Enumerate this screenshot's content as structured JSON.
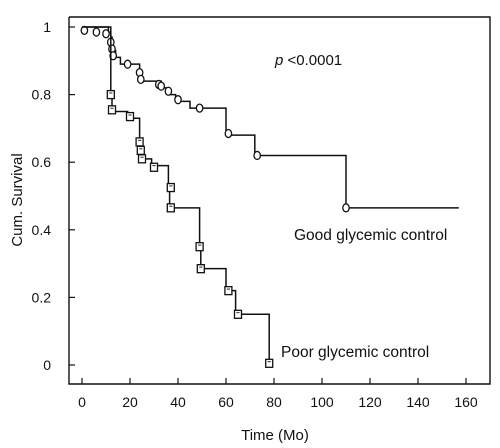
{
  "chart_data": {
    "type": "line",
    "subtype": "kaplan-meier-step",
    "xlabel": "Time (Mo)",
    "ylabel": "Cum. Survival",
    "xlim": [
      0,
      160
    ],
    "ylim": [
      0,
      1
    ],
    "xticks": [
      0,
      20,
      40,
      60,
      80,
      100,
      120,
      140,
      160
    ],
    "yticks": [
      0,
      0.2,
      0.4,
      0.6,
      0.8,
      1
    ],
    "grid": false,
    "legend": "none",
    "annotation": {
      "prefix": "p",
      "text": " <0.0001"
    },
    "series": [
      {
        "name": "Good glycemic control",
        "marker": "circle",
        "end_x": 157,
        "steps": [
          [
            0,
            1.0
          ],
          [
            11,
            0.985
          ],
          [
            12,
            0.97
          ],
          [
            12.5,
            0.95
          ],
          [
            13,
            0.93
          ],
          [
            14,
            0.91
          ],
          [
            16,
            0.89
          ],
          [
            24,
            0.86
          ],
          [
            24.5,
            0.84
          ],
          [
            33,
            0.82
          ],
          [
            36,
            0.8
          ],
          [
            39,
            0.78
          ],
          [
            45,
            0.76
          ],
          [
            60,
            0.68
          ],
          [
            72,
            0.62
          ],
          [
            110,
            0.465
          ]
        ],
        "censored": [
          [
            1,
            0.99
          ],
          [
            6,
            0.985
          ],
          [
            10,
            0.98
          ],
          [
            12,
            0.955
          ],
          [
            12.5,
            0.935
          ],
          [
            13,
            0.915
          ],
          [
            19,
            0.89
          ],
          [
            24,
            0.865
          ],
          [
            24.5,
            0.845
          ],
          [
            32,
            0.83
          ],
          [
            33,
            0.825
          ],
          [
            36,
            0.81
          ],
          [
            40,
            0.785
          ],
          [
            49,
            0.76
          ],
          [
            61,
            0.685
          ],
          [
            73,
            0.62
          ],
          [
            110,
            0.465
          ]
        ]
      },
      {
        "name": "Poor glycemic control",
        "marker": "square",
        "end_x": 78,
        "steps": [
          [
            0,
            1.0
          ],
          [
            12,
            0.8
          ],
          [
            12.5,
            0.75
          ],
          [
            19,
            0.73
          ],
          [
            24,
            0.66
          ],
          [
            24.5,
            0.635
          ],
          [
            25,
            0.61
          ],
          [
            29,
            0.59
          ],
          [
            36,
            0.525
          ],
          [
            36.5,
            0.465
          ],
          [
            49,
            0.35
          ],
          [
            49.5,
            0.285
          ],
          [
            60,
            0.22
          ],
          [
            64,
            0.15
          ],
          [
            78,
            0.0
          ]
        ],
        "censored": [
          [
            12,
            0.8
          ],
          [
            12.5,
            0.755
          ],
          [
            20,
            0.735
          ],
          [
            24,
            0.66
          ],
          [
            24.5,
            0.635
          ],
          [
            25,
            0.61
          ],
          [
            30,
            0.585
          ],
          [
            37,
            0.525
          ],
          [
            37,
            0.465
          ],
          [
            49,
            0.35
          ],
          [
            49.5,
            0.285
          ],
          [
            61,
            0.22
          ],
          [
            65,
            0.15
          ],
          [
            78,
            0.005
          ]
        ]
      }
    ]
  }
}
